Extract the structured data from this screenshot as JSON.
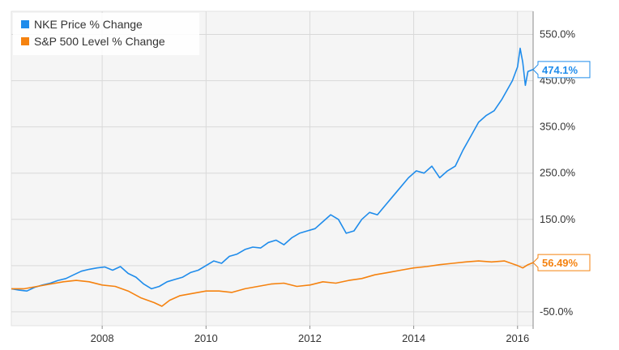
{
  "colors": {
    "nke": "#1f8ceb",
    "sp500": "#f5820f",
    "plot_bg": "#f5f5f5",
    "grid": "#d9d9d9"
  },
  "legend": [
    {
      "label": "NKE Price % Change",
      "color": "#1f8ceb"
    },
    {
      "label": "S&P 500 Level % Change",
      "color": "#f5820f"
    }
  ],
  "chart_data": {
    "type": "line",
    "grid": true,
    "legend_position": "top-left",
    "xlim": [
      2006.25,
      2016.3
    ],
    "ylim": [
      -80,
      600
    ],
    "x_ticks": [
      {
        "value": 2008,
        "label": "2008"
      },
      {
        "value": 2010,
        "label": "2010"
      },
      {
        "value": 2012,
        "label": "2012"
      },
      {
        "value": 2014,
        "label": "2014"
      },
      {
        "value": 2016,
        "label": "2016"
      }
    ],
    "y_ticks": [
      {
        "value": 550,
        "label": "550.0%"
      },
      {
        "value": 450,
        "label": "450.0%"
      },
      {
        "value": 350,
        "label": "350.0%"
      },
      {
        "value": 250,
        "label": "250.0%"
      },
      {
        "value": 150,
        "label": "150.0%"
      },
      {
        "value": 50,
        "label": "50.0%"
      },
      {
        "value": -50,
        "label": "-50.0%"
      }
    ],
    "series": [
      {
        "name": "NKE Price % Change",
        "color": "#1f8ceb",
        "end_label": "474.1%",
        "end_value": 474.1,
        "x": [
          2006.25,
          2006.4,
          2006.55,
          2006.7,
          2006.85,
          2007.0,
          2007.15,
          2007.3,
          2007.45,
          2007.6,
          2007.75,
          2007.9,
          2008.05,
          2008.2,
          2008.35,
          2008.5,
          2008.65,
          2008.8,
          2008.95,
          2009.1,
          2009.25,
          2009.4,
          2009.55,
          2009.7,
          2009.85,
          2010.0,
          2010.15,
          2010.3,
          2010.45,
          2010.6,
          2010.75,
          2010.9,
          2011.05,
          2011.2,
          2011.35,
          2011.5,
          2011.65,
          2011.8,
          2011.95,
          2012.1,
          2012.25,
          2012.4,
          2012.55,
          2012.7,
          2012.85,
          2013.0,
          2013.15,
          2013.3,
          2013.45,
          2013.6,
          2013.75,
          2013.9,
          2014.05,
          2014.2,
          2014.35,
          2014.5,
          2014.65,
          2014.8,
          2014.95,
          2015.1,
          2015.25,
          2015.4,
          2015.55,
          2015.7,
          2015.8,
          2015.9,
          2016.0,
          2016.05,
          2016.1,
          2016.15,
          2016.2,
          2016.3
        ],
        "y": [
          0,
          -3,
          -5,
          3,
          8,
          12,
          18,
          22,
          30,
          38,
          42,
          45,
          47,
          40,
          48,
          33,
          25,
          10,
          0,
          5,
          15,
          20,
          25,
          35,
          40,
          50,
          60,
          55,
          70,
          75,
          85,
          90,
          88,
          100,
          105,
          95,
          110,
          120,
          125,
          130,
          145,
          160,
          150,
          120,
          125,
          150,
          165,
          160,
          180,
          200,
          220,
          240,
          255,
          250,
          265,
          240,
          255,
          265,
          300,
          330,
          360,
          375,
          385,
          410,
          430,
          450,
          480,
          520,
          490,
          440,
          470,
          474.1
        ]
      },
      {
        "name": "S&P 500 Level % Change",
        "color": "#f5820f",
        "end_label": "56.49%",
        "end_value": 56.49,
        "x": [
          2006.25,
          2006.5,
          2006.75,
          2007.0,
          2007.25,
          2007.5,
          2007.75,
          2008.0,
          2008.25,
          2008.5,
          2008.75,
          2009.0,
          2009.15,
          2009.3,
          2009.5,
          2009.75,
          2010.0,
          2010.25,
          2010.5,
          2010.75,
          2011.0,
          2011.25,
          2011.5,
          2011.75,
          2012.0,
          2012.25,
          2012.5,
          2012.75,
          2013.0,
          2013.25,
          2013.5,
          2013.75,
          2014.0,
          2014.25,
          2014.5,
          2014.75,
          2015.0,
          2015.25,
          2015.5,
          2015.75,
          2016.0,
          2016.1,
          2016.2,
          2016.3
        ],
        "y": [
          0,
          0,
          5,
          10,
          15,
          18,
          15,
          8,
          5,
          -5,
          -20,
          -30,
          -38,
          -25,
          -15,
          -10,
          -5,
          -5,
          -8,
          0,
          5,
          10,
          12,
          5,
          8,
          15,
          12,
          18,
          22,
          30,
          35,
          40,
          45,
          48,
          52,
          55,
          58,
          60,
          58,
          60,
          50,
          45,
          52,
          56.49
        ]
      }
    ]
  }
}
